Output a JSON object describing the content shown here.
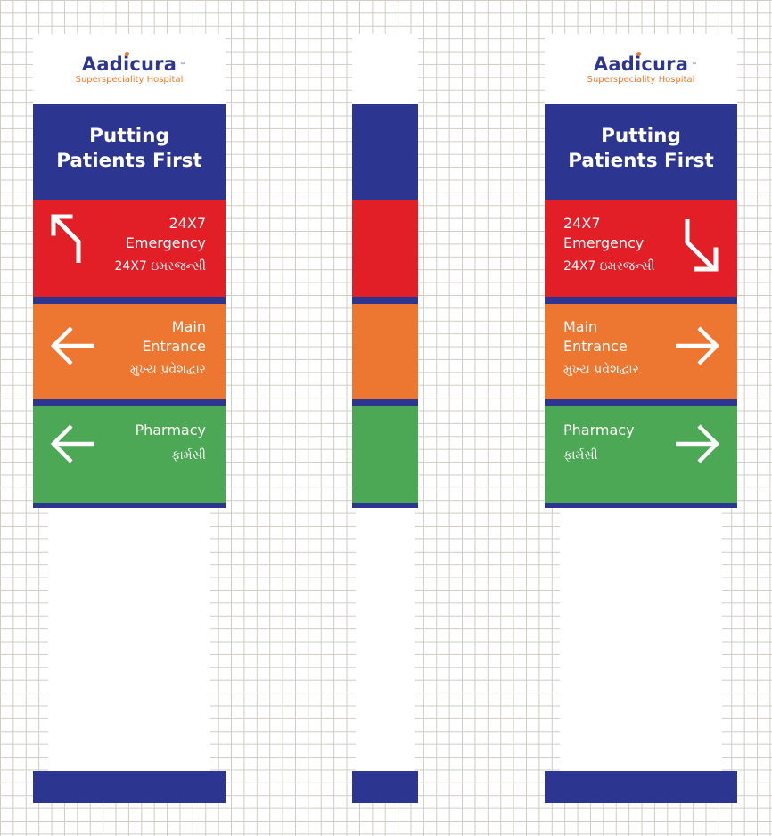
{
  "brand": {
    "name": "Aadicura",
    "trademark": "™",
    "subtitle": "Superspeciality Hospital"
  },
  "tagline": {
    "line1": "Putting",
    "line2": "Patients First"
  },
  "signs": {
    "emergency": {
      "line1": "24X7",
      "line2": "Emergency",
      "gujarati": "24X7 ઇમરજન્સી"
    },
    "main_entrance": {
      "line1": "Main",
      "line2": "Entrance",
      "gujarati": "મુખ્ય પ્રવેશદ્વાર"
    },
    "pharmacy": {
      "line1": "Pharmacy",
      "gujarati": "ફાર્મસી"
    }
  },
  "icons": {
    "left_emergency": "arrow-up-left-icon",
    "right_emergency": "arrow-down-right-icon",
    "left_entrance": "arrow-left-icon",
    "right_entrance": "arrow-right-icon",
    "left_pharmacy": "arrow-left-icon",
    "right_pharmacy": "arrow-right-icon"
  },
  "colors": {
    "navy": "#2c3590",
    "red": "#e21f26",
    "orange": "#ed7630",
    "green": "#4ca855",
    "logo_orange": "#ec7a2e",
    "grid": "#cfcdc4"
  }
}
